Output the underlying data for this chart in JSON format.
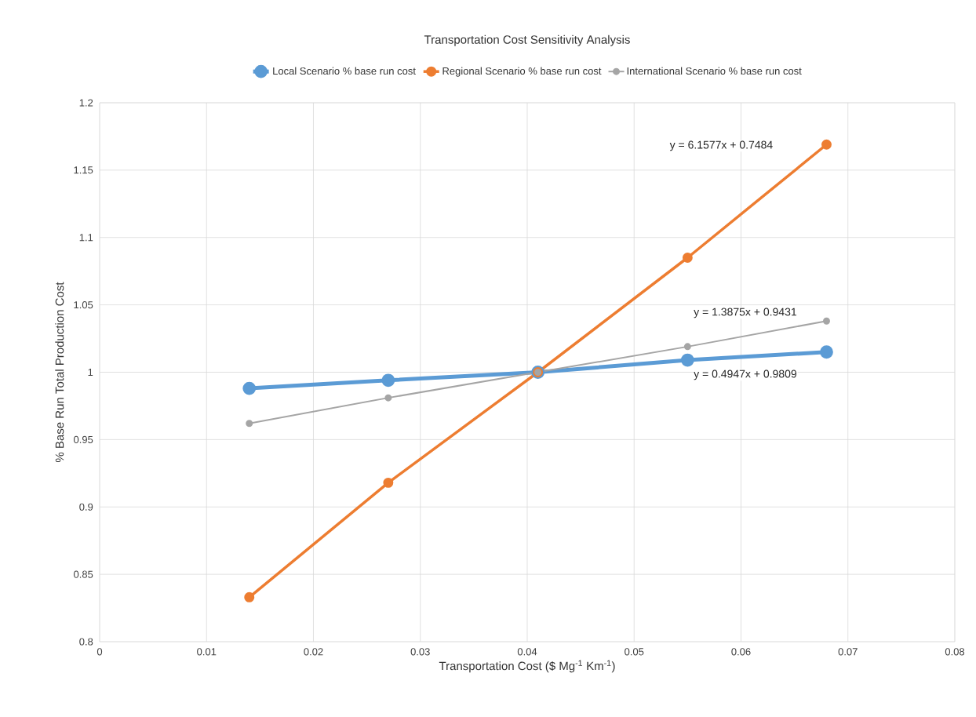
{
  "chart_data": {
    "type": "line",
    "title": "Transportation Cost Sensitivity Analysis",
    "xlabel": "Transportation Cost ($ Mg$^{-1}$ Km$^{-1}$)",
    "ylabel": "% Base Run Total Production Cost",
    "x": [
      0.014,
      0.027,
      0.041,
      0.055,
      0.068
    ],
    "series": [
      {
        "name": "Local Scenario %  base run cost",
        "color": "#5b9bd5",
        "values": [
          0.988,
          0.994,
          1.0,
          1.009,
          1.015
        ]
      },
      {
        "name": "Regional Scenario %  base run cost",
        "color": "#ed7d31",
        "values": [
          0.833,
          0.918,
          1.0,
          1.085,
          1.169
        ]
      },
      {
        "name": "International Scenario %  base run cost",
        "color": "#a5a5a5",
        "values": [
          0.962,
          0.981,
          1.0,
          1.019,
          1.038
        ]
      }
    ],
    "xlim": [
      0,
      0.08
    ],
    "xticks": [
      0,
      0.01,
      0.02,
      0.03,
      0.04,
      0.05,
      0.06,
      0.07,
      0.08
    ],
    "ylim": [
      0.8,
      1.2
    ],
    "yticks": [
      0.8,
      0.85,
      0.9,
      0.95,
      1,
      1.05,
      1.1,
      1.15,
      1.2
    ],
    "annotations": [
      "y = 6.1577x + 0.7484",
      "y = 1.3875x + 0.9431",
      "y = 0.4947x + 0.9809"
    ],
    "grid": true,
    "legend": "top",
    "marker": "circle",
    "line_style": "solid"
  }
}
